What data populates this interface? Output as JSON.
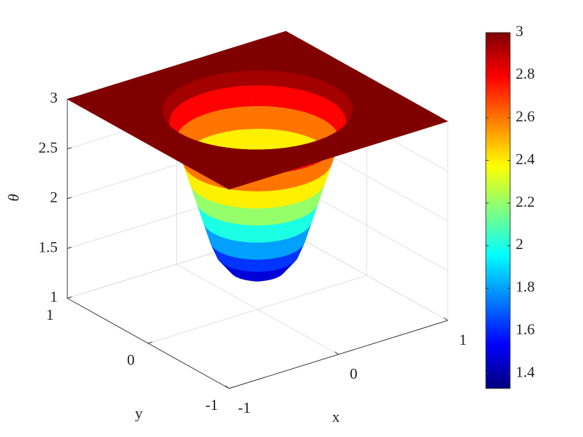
{
  "chart_data": {
    "type": "surface",
    "xlabel": "x",
    "ylabel": "y",
    "zlabel": "θ",
    "xlim": [
      -1,
      1
    ],
    "ylim": [
      -1,
      1
    ],
    "zlim": [
      1,
      3
    ],
    "xticks": [
      -1,
      0,
      1
    ],
    "yticks": [
      -1,
      0,
      1
    ],
    "zticks": [
      1,
      1.5,
      2,
      2.5,
      3
    ],
    "grid": true,
    "colormap": "jet",
    "surface": {
      "r": [
        0,
        0.1,
        0.2,
        0.3,
        0.35,
        0.4,
        0.45,
        0.5,
        0.55,
        0.6,
        0.65,
        0.7
      ],
      "values": [
        1.33,
        1.34,
        1.4,
        1.55,
        1.7,
        1.9,
        2.1,
        2.3,
        2.5,
        2.7,
        2.88,
        3
      ]
    },
    "colorbar": {
      "lim": [
        1.33,
        3
      ],
      "ticks": [
        1.4,
        1.6,
        1.8,
        2,
        2.2,
        2.4,
        2.6,
        2.8,
        3
      ]
    }
  }
}
